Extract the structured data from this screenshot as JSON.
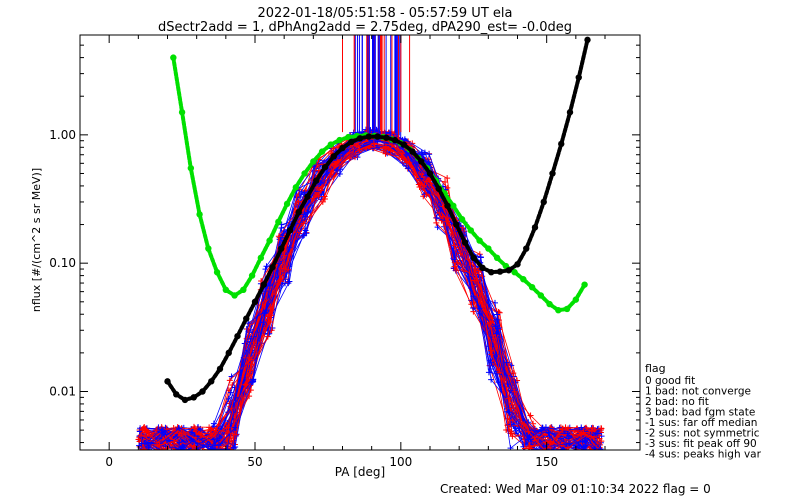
{
  "chart_data": {
    "type": "line",
    "title": "2022-01-18/05:51:58 - 05:57:59 UT ela",
    "subtitle": "dSectr2add = 1, dPhAng2add = 2.75deg, dPA290_est=  -0.0deg",
    "xlabel": "PA [deg]",
    "ylabel": "nflux [#/(cm^2 s sr MeV)]",
    "xlim": [
      -10,
      182
    ],
    "ylim": [
      0.0035,
      6.0
    ],
    "yscale": "log",
    "xticks": [
      0,
      50,
      100,
      150
    ],
    "xtick_labels": [
      "0",
      "50",
      "100",
      "150"
    ],
    "yticks": [
      0.01,
      0.1,
      1.0
    ],
    "ytick_labels": [
      "0.01",
      "0.10",
      "1.00"
    ],
    "grid": false,
    "series": [
      {
        "color": "#00e000",
        "marker": "filled-circle",
        "x": [
          22,
          25,
          28,
          31,
          34,
          37,
          40,
          43,
          46,
          49,
          52,
          55,
          58,
          61,
          64,
          67,
          70,
          73,
          76,
          79,
          82,
          85,
          88,
          91,
          94,
          97,
          100,
          103,
          106,
          109,
          112,
          115,
          118,
          121,
          124,
          127,
          130,
          133,
          136,
          139,
          142,
          145,
          148,
          151,
          154,
          157,
          160,
          163
        ],
        "y": [
          4.0,
          1.5,
          0.55,
          0.24,
          0.13,
          0.085,
          0.062,
          0.056,
          0.062,
          0.08,
          0.11,
          0.15,
          0.21,
          0.29,
          0.39,
          0.5,
          0.62,
          0.74,
          0.84,
          0.91,
          0.96,
          0.98,
          0.99,
          0.98,
          0.96,
          0.92,
          0.86,
          0.77,
          0.66,
          0.55,
          0.44,
          0.35,
          0.28,
          0.22,
          0.18,
          0.15,
          0.13,
          0.11,
          0.095,
          0.085,
          0.075,
          0.065,
          0.056,
          0.048,
          0.043,
          0.044,
          0.052,
          0.068
        ]
      },
      {
        "color": "#000000",
        "marker": "filled-circle",
        "x": [
          20,
          23,
          26,
          29,
          32,
          35,
          38,
          41,
          44,
          47,
          50,
          53,
          56,
          59,
          62,
          65,
          68,
          71,
          74,
          77,
          80,
          83,
          86,
          89,
          92,
          95,
          98,
          101,
          104,
          107,
          110,
          113,
          116,
          119,
          122,
          125,
          128,
          131,
          134,
          137,
          140,
          143,
          146,
          149,
          152,
          155,
          158,
          161,
          164
        ],
        "y": [
          0.012,
          0.0095,
          0.0086,
          0.009,
          0.01,
          0.012,
          0.015,
          0.02,
          0.027,
          0.037,
          0.05,
          0.068,
          0.093,
          0.13,
          0.18,
          0.25,
          0.33,
          0.44,
          0.56,
          0.68,
          0.79,
          0.88,
          0.94,
          0.97,
          0.97,
          0.95,
          0.91,
          0.84,
          0.74,
          0.62,
          0.5,
          0.38,
          0.28,
          0.2,
          0.145,
          0.11,
          0.092,
          0.085,
          0.086,
          0.088,
          0.098,
          0.13,
          0.19,
          0.3,
          0.5,
          0.85,
          1.5,
          2.8,
          5.5
        ]
      }
    ],
    "scatter_series": [
      {
        "color": "#0000ff",
        "marker": "plus",
        "note_count": 0
      },
      {
        "color": "#ff0000",
        "marker": "plus",
        "note_count": 0
      }
    ],
    "legend": {
      "placement": "right",
      "title": "flag",
      "entries": [
        " 0 good fit",
        " 1 bad: not converge",
        " 2 bad: no fit",
        " 3 bad: bad fgm state",
        "-1 sus: far off median",
        "-2 sus: not symmetric",
        "-3 sus: fit peak off 90",
        "-4 sus: peaks high var"
      ]
    },
    "footer": "Created: Wed Mar 09 01:10:34 2022   flag = 0"
  },
  "colors": {
    "blue_data": "#0000ff",
    "red_data": "#ff0000",
    "green_fit": "#00e000",
    "black_fit": "#000000"
  }
}
